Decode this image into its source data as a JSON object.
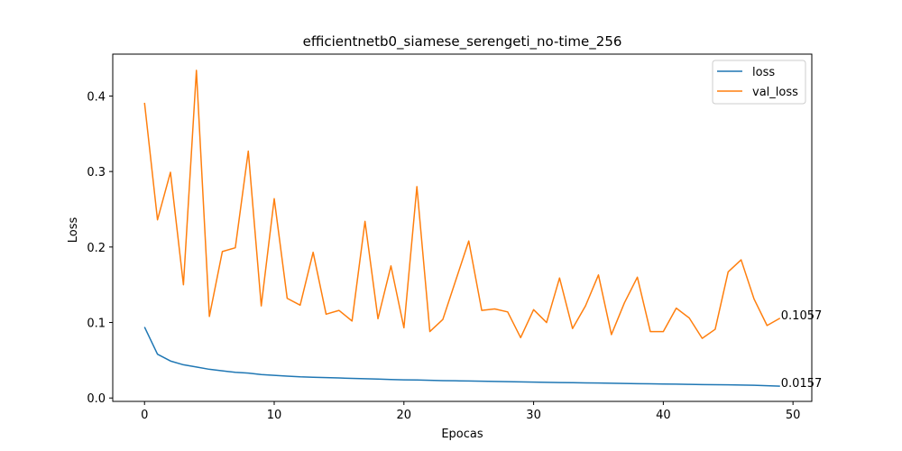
{
  "chart_data": {
    "type": "line",
    "title": "efficientnetb0_siamese_serengeti_no-time_256",
    "xlabel": "Epocas",
    "ylabel": "Loss",
    "xlim": [
      -2.45,
      51.45
    ],
    "ylim": [
      -0.0045,
      0.4555
    ],
    "xticks": [
      0,
      10,
      20,
      30,
      40,
      50
    ],
    "yticks": [
      0.0,
      0.1,
      0.2,
      0.3,
      0.4
    ],
    "xtick_labels": [
      "0",
      "10",
      "20",
      "30",
      "40",
      "50"
    ],
    "ytick_labels": [
      "0.0",
      "0.1",
      "0.2",
      "0.3",
      "0.4"
    ],
    "grid": false,
    "legend_position": "top-right",
    "x": [
      0,
      1,
      2,
      3,
      4,
      5,
      6,
      7,
      8,
      9,
      10,
      11,
      12,
      13,
      14,
      15,
      16,
      17,
      18,
      19,
      20,
      21,
      22,
      23,
      24,
      25,
      26,
      27,
      28,
      29,
      30,
      31,
      32,
      33,
      34,
      35,
      36,
      37,
      38,
      39,
      40,
      41,
      42,
      43,
      44,
      45,
      46,
      47,
      48,
      49
    ],
    "series": [
      {
        "name": "loss",
        "color": "#1f77b4",
        "values": [
          0.094,
          0.058,
          0.049,
          0.044,
          0.041,
          0.038,
          0.036,
          0.034,
          0.033,
          0.031,
          0.03,
          0.029,
          0.028,
          0.0275,
          0.027,
          0.0265,
          0.026,
          0.0255,
          0.025,
          0.0245,
          0.024,
          0.0238,
          0.0235,
          0.023,
          0.0228,
          0.0225,
          0.0222,
          0.022,
          0.0217,
          0.0214,
          0.021,
          0.0208,
          0.0205,
          0.0203,
          0.02,
          0.0198,
          0.0196,
          0.0193,
          0.019,
          0.0188,
          0.0185,
          0.0183,
          0.018,
          0.0178,
          0.0176,
          0.0174,
          0.0172,
          0.0168,
          0.0162,
          0.0157
        ],
        "end_label": "0.0157"
      },
      {
        "name": "val_loss",
        "color": "#ff7f0e",
        "values": [
          0.391,
          0.236,
          0.299,
          0.15,
          0.434,
          0.108,
          0.194,
          0.199,
          0.327,
          0.122,
          0.264,
          0.132,
          0.123,
          0.193,
          0.111,
          0.116,
          0.102,
          0.234,
          0.105,
          0.175,
          0.093,
          0.28,
          0.088,
          0.104,
          0.156,
          0.208,
          0.116,
          0.118,
          0.114,
          0.08,
          0.117,
          0.1,
          0.159,
          0.092,
          0.122,
          0.163,
          0.084,
          0.126,
          0.16,
          0.088,
          0.088,
          0.119,
          0.106,
          0.079,
          0.091,
          0.167,
          0.183,
          0.131,
          0.096,
          0.1057
        ],
        "end_label": "0.1057"
      }
    ]
  }
}
